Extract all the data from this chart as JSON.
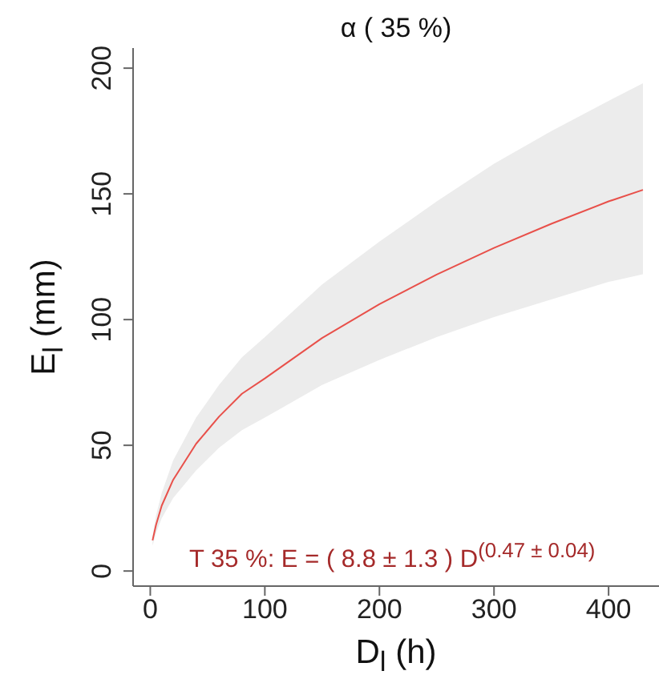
{
  "chart_data": {
    "type": "line",
    "title": "α ( 35 %)",
    "xlabel": "D$_{l}$ (h)",
    "ylabel": "E$_{l}$ (mm)",
    "annotations": [
      "T 35 %: E = ( 8.8 ± 1.3 ) D$^{(0.47 ± 0.04)}$"
    ],
    "x": [
      2,
      5,
      10,
      20,
      40,
      60,
      80,
      100,
      150,
      200,
      250,
      300,
      350,
      400,
      430
    ],
    "series": [
      {
        "color": "#e8504a",
        "values": [
          12.2,
          18.3,
          26,
          36.3,
          50.6,
          61.4,
          70.5,
          76.6,
          92.7,
          106.1,
          117.9,
          128.5,
          138.1,
          147,
          151.6
        ],
        "lower": [
          10,
          15,
          21,
          29,
          40,
          49,
          56,
          61,
          74,
          84,
          93,
          101,
          108,
          115,
          118
        ],
        "upper": [
          14,
          22,
          31,
          44,
          61,
          74,
          85,
          93,
          114,
          131,
          147,
          162,
          175,
          187,
          194
        ]
      }
    ],
    "xlim": [
      -15,
      444
    ],
    "xticks": [
      0,
      100,
      200,
      300,
      400
    ],
    "ylim": [
      -6,
      208
    ],
    "yticks": [
      0,
      50,
      100,
      150,
      200
    ],
    "grid": false,
    "legend": false,
    "marker": "none",
    "line_style": "solid"
  }
}
